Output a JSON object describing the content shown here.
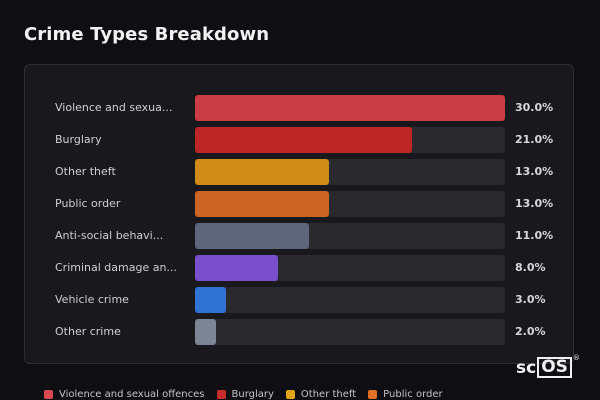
{
  "title": "Crime Types Breakdown",
  "brand": {
    "prefix": "sc",
    "boxed": "OS",
    "reg": "®"
  },
  "chart_data": {
    "type": "bar",
    "orientation": "horizontal",
    "title": "Crime Types Breakdown",
    "categories": [
      "Violence and sexua...",
      "Burglary",
      "Other theft",
      "Public order",
      "Anti-social behavi...",
      "Criminal damage an...",
      "Vehicle crime",
      "Other crime"
    ],
    "values": [
      30.0,
      21.0,
      13.0,
      13.0,
      11.0,
      8.0,
      3.0,
      2.0
    ],
    "value_labels": [
      "30.0%",
      "21.0%",
      "13.0%",
      "13.0%",
      "11.0%",
      "8.0%",
      "3.0%",
      "2.0%"
    ],
    "colors": [
      "#c93c44",
      "#bd2527",
      "#cf8a17",
      "#cd6424",
      "#5d6679",
      "#7a4fcb",
      "#2f74d4",
      "#7c8596"
    ],
    "xlim": [
      0,
      30
    ],
    "grid": false,
    "legend_position": "bottom",
    "legend": [
      {
        "label": "Violence and sexual offences",
        "color": "#d9484f"
      },
      {
        "label": "Burglary",
        "color": "#c82c2e"
      },
      {
        "label": "Other theft",
        "color": "#e0a418"
      },
      {
        "label": "Public order",
        "color": "#e26f24"
      }
    ]
  }
}
